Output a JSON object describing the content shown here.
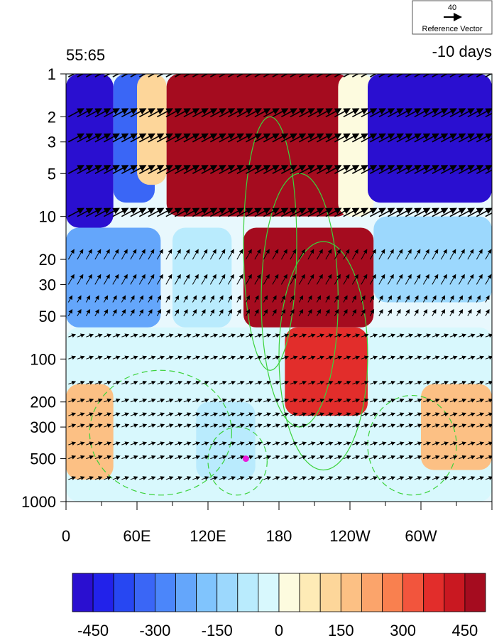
{
  "chart_data": {
    "type": "heatmap",
    "title_left": "55:65",
    "title_right": "-10 days",
    "reference_vector": {
      "magnitude_label": "40",
      "label": "Reference Vector"
    },
    "x_axis": {
      "tick_labels": [
        "0",
        "60E",
        "120E",
        "180",
        "120W",
        "60W"
      ],
      "tick_longitudes": [
        0,
        60,
        120,
        180,
        240,
        300
      ],
      "range": [
        0,
        360
      ]
    },
    "y_axis": {
      "scale": "log",
      "reversed": true,
      "range": [
        1000,
        1
      ],
      "tick_labels": [
        "1",
        "2",
        "3",
        "5",
        "10",
        "20",
        "30",
        "50",
        "100",
        "200",
        "300",
        "500",
        "1000"
      ],
      "tick_values": [
        1,
        2,
        3,
        5,
        10,
        20,
        30,
        50,
        100,
        200,
        300,
        500,
        1000
      ]
    },
    "colorbar": {
      "levels": [
        -500,
        -450,
        -400,
        -350,
        -300,
        -250,
        -200,
        -150,
        -100,
        -50,
        0,
        50,
        100,
        150,
        200,
        250,
        300,
        350,
        400,
        450,
        500
      ],
      "tick_labels": [
        "-450",
        "-300",
        "-150",
        "0",
        "150",
        "300",
        "450"
      ],
      "tick_values": [
        -450,
        -300,
        -150,
        0,
        150,
        300,
        450
      ],
      "colors": [
        "#2a0fd0",
        "#2222ea",
        "#2747f2",
        "#3a66f6",
        "#4b86fa",
        "#64a6fb",
        "#80c4fd",
        "#9cd8fd",
        "#b9ebfd",
        "#d8f8fd",
        "#fdfbdf",
        "#feebb6",
        "#fdd69a",
        "#fcc084",
        "#fba46b",
        "#f9804f",
        "#f2553d",
        "#e22d2b",
        "#c91821",
        "#a50c1f"
      ]
    },
    "field_cells": [
      {
        "lon": [
          0,
          40
        ],
        "p": [
          1,
          12
        ],
        "v": -500
      },
      {
        "lon": [
          40,
          75
        ],
        "p": [
          1,
          8
        ],
        "v": -350
      },
      {
        "lon": [
          60,
          85
        ],
        "p": [
          1,
          6
        ],
        "v": 100
      },
      {
        "lon": [
          85,
          240
        ],
        "p": [
          1,
          10
        ],
        "v": 500
      },
      {
        "lon": [
          230,
          260
        ],
        "p": [
          1,
          10
        ],
        "v": 0
      },
      {
        "lon": [
          255,
          360
        ],
        "p": [
          1,
          8
        ],
        "v": -500
      },
      {
        "lon": [
          0,
          80
        ],
        "p": [
          12,
          60
        ],
        "v": -250
      },
      {
        "lon": [
          90,
          140
        ],
        "p": [
          12,
          60
        ],
        "v": -100
      },
      {
        "lon": [
          150,
          260
        ],
        "p": [
          12,
          60
        ],
        "v": 500
      },
      {
        "lon": [
          260,
          360
        ],
        "p": [
          10,
          40
        ],
        "v": -150
      },
      {
        "lon": [
          0,
          360
        ],
        "p": [
          60,
          1000
        ],
        "v": -50
      },
      {
        "lon": [
          0,
          40
        ],
        "p": [
          150,
          700
        ],
        "v": 150
      },
      {
        "lon": [
          110,
          160
        ],
        "p": [
          200,
          700
        ],
        "v": -100
      },
      {
        "lon": [
          185,
          255
        ],
        "p": [
          60,
          250
        ],
        "v": 350
      },
      {
        "lon": [
          300,
          360
        ],
        "p": [
          150,
          600
        ],
        "v": 150
      }
    ],
    "marker": {
      "lon": 152,
      "p": 500,
      "color": "#e81ad9"
    },
    "contours_solid": [
      {
        "lon0": 150,
        "lon1": 195,
        "ptop": 2,
        "pbot": 120
      },
      {
        "lon0": 165,
        "lon1": 230,
        "ptop": 5,
        "pbot": 300
      },
      {
        "lon0": 180,
        "lon1": 255,
        "ptop": 15,
        "pbot": 600
      }
    ],
    "contours_dashed": [
      {
        "lon0": 20,
        "lon1": 140,
        "ptop": 120,
        "pbot": 900
      },
      {
        "lon0": 255,
        "lon1": 330,
        "ptop": 180,
        "pbot": 900
      },
      {
        "lon0": 120,
        "lon1": 170,
        "ptop": 300,
        "pbot": 900
      }
    ]
  }
}
